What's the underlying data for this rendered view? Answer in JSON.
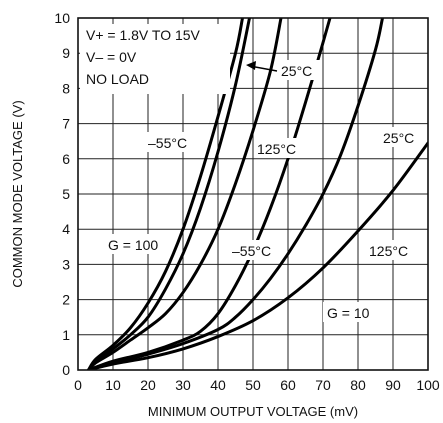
{
  "chart_data": {
    "type": "line",
    "title": "",
    "xlabel": "MINIMUM OUTPUT VOLTAGE (mV)",
    "ylabel": "COMMON MODE VOLTAGE (V)",
    "xlim": [
      0,
      100
    ],
    "ylim": [
      0,
      10
    ],
    "x_ticks": [
      "0",
      "10",
      "20",
      "30",
      "40",
      "50",
      "60",
      "70",
      "80",
      "90",
      "100"
    ],
    "y_ticks": [
      "0",
      "1",
      "2",
      "3",
      "4",
      "5",
      "6",
      "7",
      "8",
      "9",
      "10"
    ],
    "grid": true,
    "conditions": [
      "V+ = 1.8V TO 15V",
      "V– = 0V",
      "NO LOAD"
    ],
    "group_labels": [
      "G = 100",
      "G = 10"
    ],
    "series": [
      {
        "group": "G = 100",
        "label": "–55°C",
        "points": [
          [
            3,
            0
          ],
          [
            5,
            0.3
          ],
          [
            10,
            0.7
          ],
          [
            15,
            1.2
          ],
          [
            20,
            1.9
          ],
          [
            25,
            2.8
          ],
          [
            30,
            4.0
          ],
          [
            35,
            5.5
          ],
          [
            40,
            7.2
          ],
          [
            45,
            9.0
          ],
          [
            47,
            10
          ]
        ]
      },
      {
        "group": "G = 100",
        "label": "25°C",
        "points": [
          [
            3,
            0
          ],
          [
            5,
            0.25
          ],
          [
            10,
            0.6
          ],
          [
            15,
            1.0
          ],
          [
            20,
            1.5
          ],
          [
            25,
            2.3
          ],
          [
            30,
            3.3
          ],
          [
            35,
            4.6
          ],
          [
            40,
            6.2
          ],
          [
            45,
            8.1
          ],
          [
            49,
            10
          ]
        ]
      },
      {
        "group": "G = 100",
        "label": "125°C",
        "points": [
          [
            3,
            0
          ],
          [
            5,
            0.2
          ],
          [
            10,
            0.5
          ],
          [
            15,
            0.85
          ],
          [
            20,
            1.2
          ],
          [
            25,
            1.6
          ],
          [
            30,
            2.2
          ],
          [
            35,
            3.0
          ],
          [
            40,
            4.0
          ],
          [
            45,
            5.3
          ],
          [
            50,
            6.8
          ],
          [
            55,
            8.5
          ],
          [
            58,
            10
          ]
        ]
      },
      {
        "group": "G = 10",
        "label": "–55°C",
        "points": [
          [
            3,
            0
          ],
          [
            10,
            0.25
          ],
          [
            20,
            0.5
          ],
          [
            30,
            0.85
          ],
          [
            35,
            1.1
          ],
          [
            40,
            1.6
          ],
          [
            45,
            2.4
          ],
          [
            50,
            3.4
          ],
          [
            55,
            4.6
          ],
          [
            60,
            6.0
          ],
          [
            65,
            7.6
          ],
          [
            70,
            9.3
          ],
          [
            72,
            10
          ]
        ]
      },
      {
        "group": "G = 10",
        "label": "25°C",
        "points": [
          [
            3,
            0
          ],
          [
            10,
            0.2
          ],
          [
            20,
            0.45
          ],
          [
            30,
            0.75
          ],
          [
            40,
            1.15
          ],
          [
            45,
            1.5
          ],
          [
            50,
            2.0
          ],
          [
            55,
            2.6
          ],
          [
            60,
            3.3
          ],
          [
            65,
            4.1
          ],
          [
            70,
            5.0
          ],
          [
            75,
            6.1
          ],
          [
            80,
            7.5
          ],
          [
            85,
            9.1
          ],
          [
            87,
            10
          ]
        ]
      },
      {
        "group": "G = 10",
        "label": "125°C",
        "points": [
          [
            3,
            0
          ],
          [
            10,
            0.17
          ],
          [
            20,
            0.35
          ],
          [
            30,
            0.6
          ],
          [
            40,
            0.95
          ],
          [
            50,
            1.4
          ],
          [
            60,
            2.05
          ],
          [
            70,
            2.9
          ],
          [
            80,
            3.95
          ],
          [
            90,
            5.1
          ],
          [
            100,
            6.45
          ]
        ]
      }
    ],
    "series_label_text": [
      "–55°C",
      "25°C",
      "125°C",
      "–55°C",
      "25°C",
      "125°C"
    ]
  }
}
